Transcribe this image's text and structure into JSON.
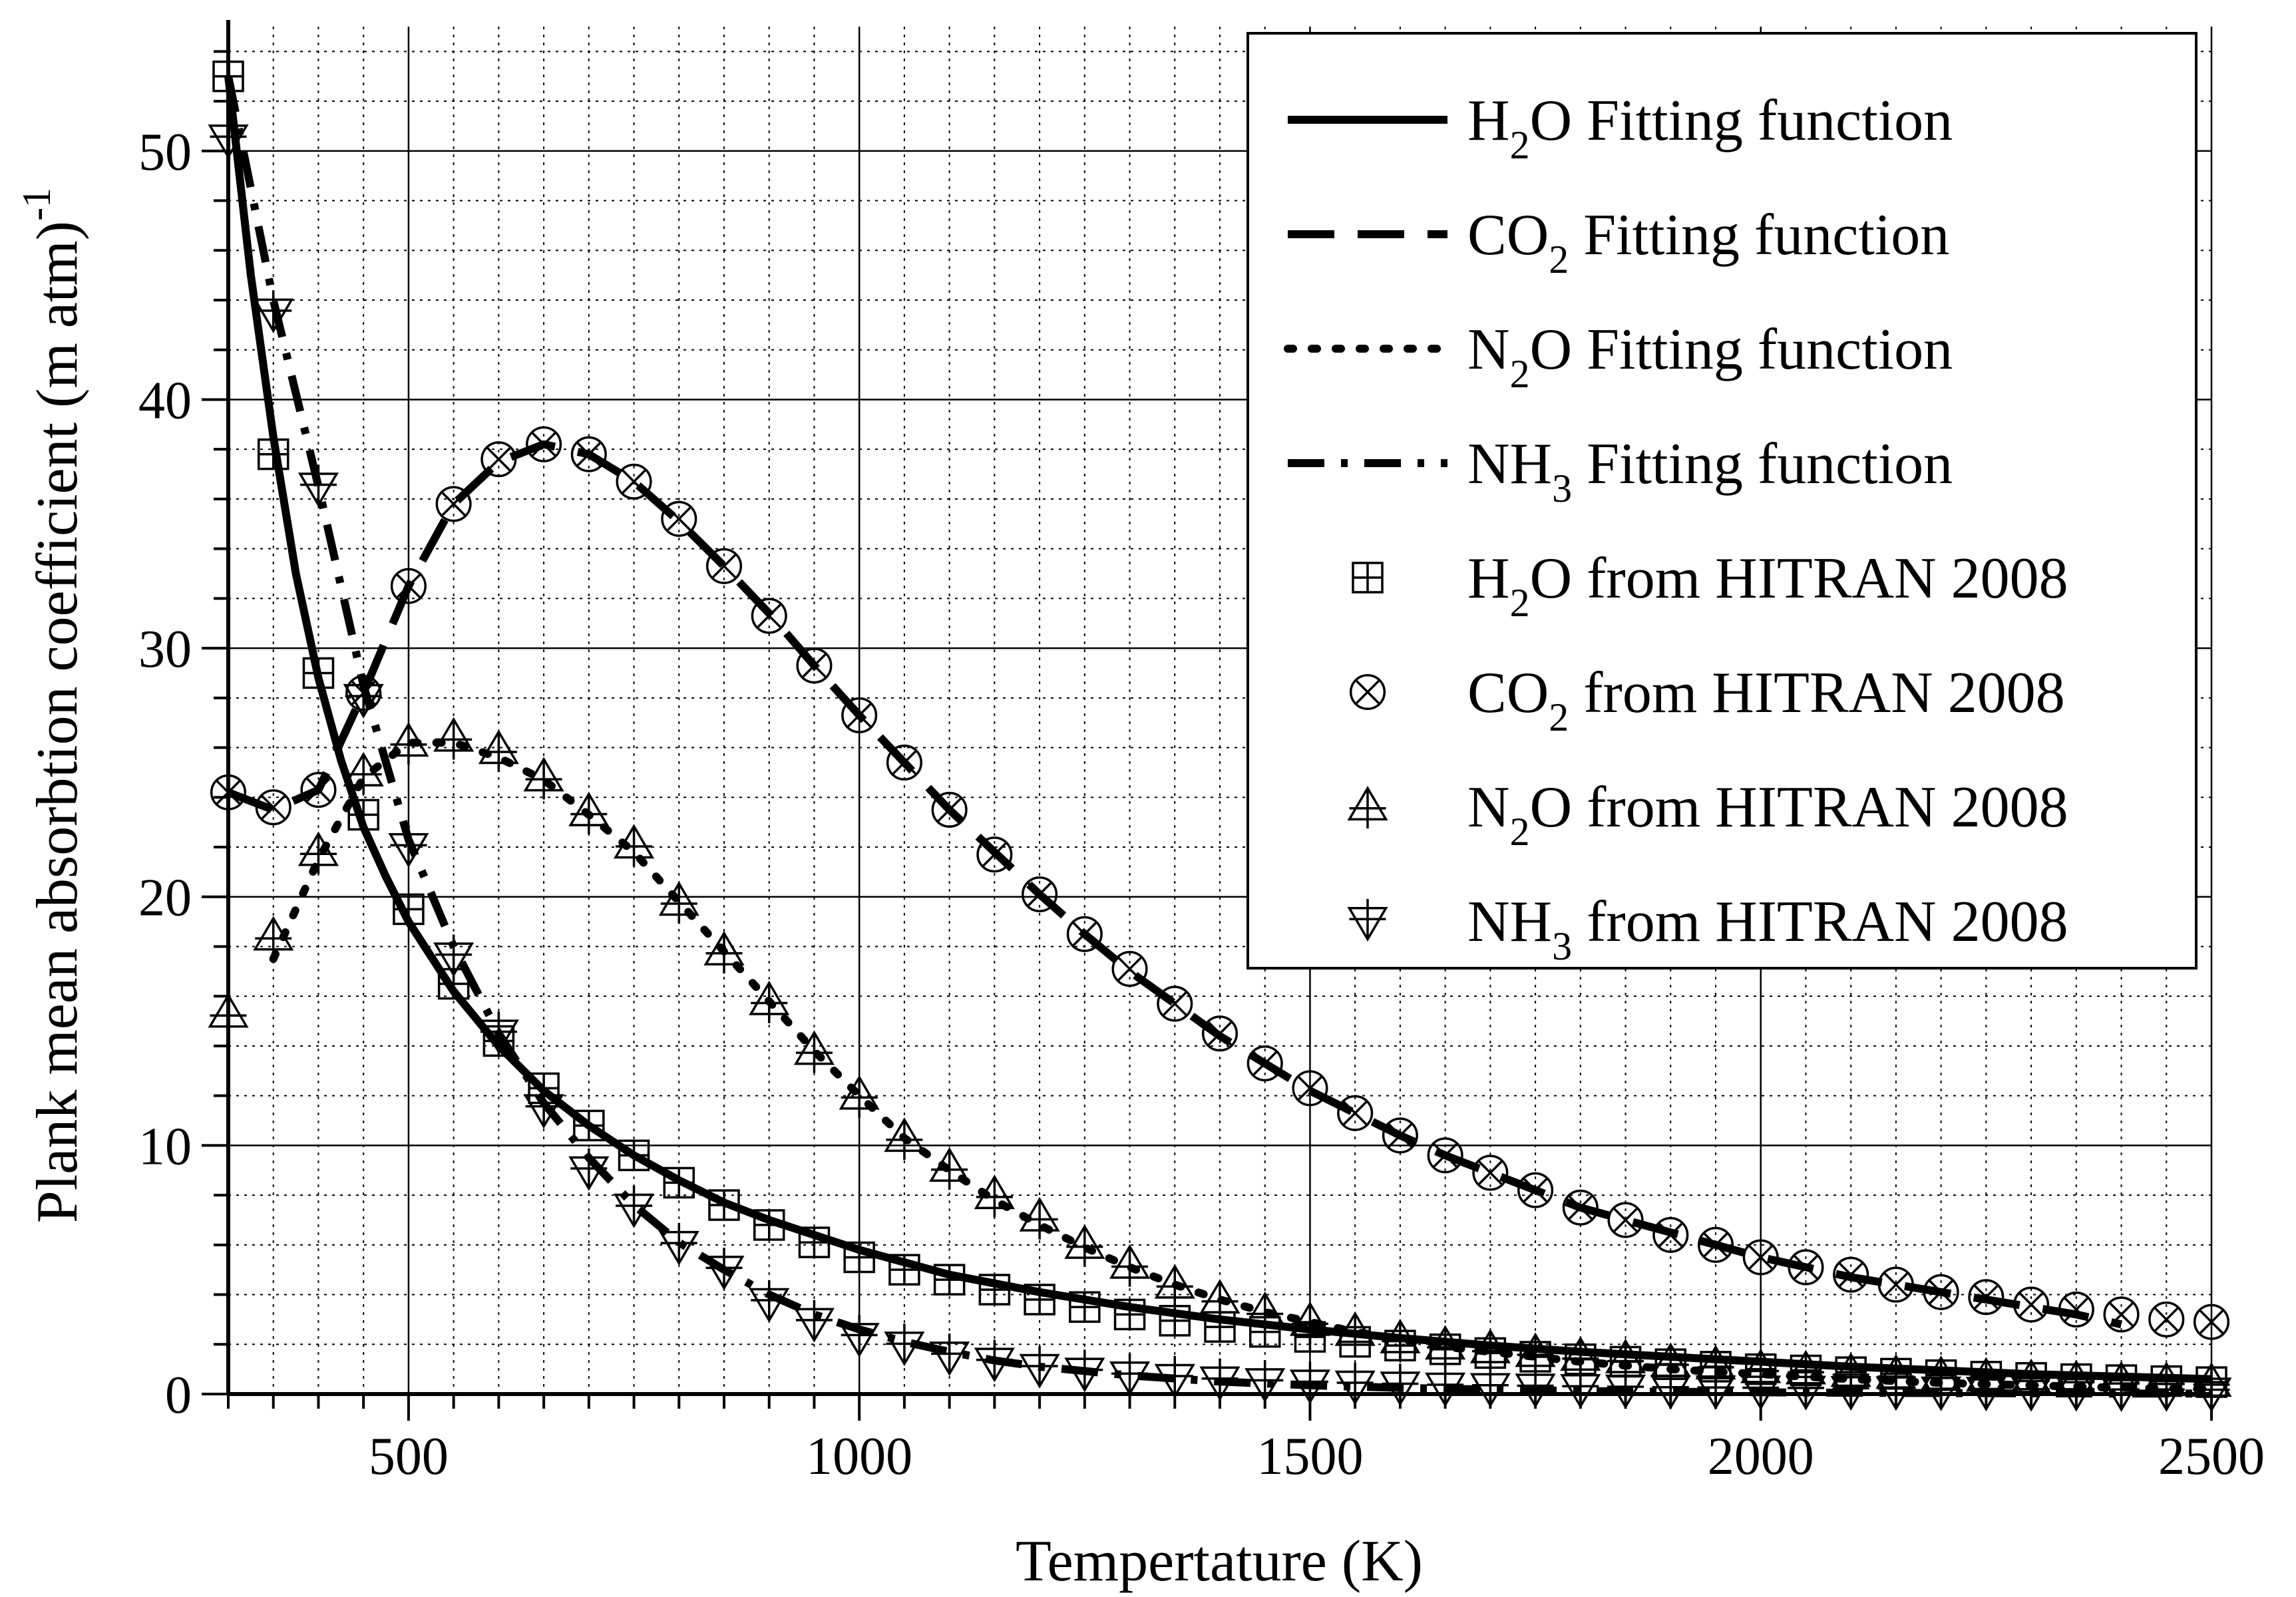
{
  "chart_data": {
    "type": "line",
    "title": "",
    "xlabel": "Tempertature (K)",
    "ylabel": "Plank mean absorbtion coefficient (m atm)",
    "ylabel_superscript": "-1",
    "xlim": [
      300,
      2500
    ],
    "ylim": [
      0,
      55
    ],
    "x_ticks": [
      500,
      1000,
      1500,
      2000,
      2500
    ],
    "y_ticks": [
      0,
      10,
      20,
      30,
      40,
      50
    ],
    "x_tick_labels": [
      "500",
      "1000",
      "1500",
      "2000",
      "2500"
    ],
    "y_tick_labels": [
      "0",
      "10",
      "20",
      "30",
      "40",
      "50"
    ],
    "grid": true,
    "legend_position": "top-right",
    "fitting_series": [
      {
        "name": "H2O Fitting function",
        "legend_main": "H",
        "legend_sub": "2",
        "legend_rest": "O Fitting function",
        "line_style": "solid",
        "x": [
          300,
          325,
          350,
          375,
          400,
          425,
          450,
          475,
          500,
          550,
          600,
          650,
          700,
          750,
          800,
          850,
          900,
          950,
          1000,
          1100,
          1200,
          1300,
          1400,
          1500,
          1600,
          1700,
          1800,
          1900,
          2000,
          2100,
          2200,
          2300,
          2400,
          2500
        ],
        "y": [
          53,
          45,
          38.5,
          33,
          28.8,
          25.5,
          22.8,
          20.8,
          19,
          16.2,
          14,
          12.2,
          10.8,
          9.6,
          8.6,
          7.7,
          7,
          6.4,
          5.8,
          4.8,
          4.1,
          3.5,
          3,
          2.6,
          2.25,
          1.95,
          1.7,
          1.5,
          1.3,
          1.1,
          0.95,
          0.8,
          0.7,
          0.6
        ]
      },
      {
        "name": "CO2 Fitting function",
        "legend_main": "CO",
        "legend_sub": "2",
        "legend_rest": " Fitting function",
        "line_style": "dash",
        "x": [
          300,
          350,
          400,
          450,
          500,
          550,
          600,
          650,
          700,
          750,
          800,
          850,
          900,
          950,
          1000,
          1050,
          1100,
          1150,
          1200,
          1250,
          1300,
          1350,
          1400,
          1450,
          1500,
          1550,
          1600,
          1650,
          1700,
          1750,
          1800,
          1850,
          1900,
          1950,
          2000,
          2050,
          2100,
          2150,
          2200,
          2250,
          2300,
          2350,
          2400
        ],
        "y": [
          24.2,
          23.5,
          24.3,
          28.2,
          32.5,
          35.8,
          37.5,
          38.2,
          37.8,
          36.7,
          35.1,
          33.3,
          31.4,
          29.3,
          27.3,
          25.4,
          23.5,
          21.8,
          20.1,
          18.5,
          17,
          15.7,
          14.4,
          13.3,
          12.2,
          11.3,
          10.4,
          9.6,
          8.9,
          8.2,
          7.5,
          7,
          6.5,
          6,
          5.5,
          5.1,
          4.7,
          4.4,
          4.1,
          3.8,
          3.5,
          3.2,
          2.8
        ]
      },
      {
        "name": "N2O Fitting function",
        "legend_main": "N",
        "legend_sub": "2",
        "legend_rest": "O Fitting function",
        "line_style": "dot",
        "x": [
          350,
          400,
          450,
          500,
          550,
          600,
          650,
          700,
          750,
          800,
          850,
          900,
          950,
          1000,
          1050,
          1100,
          1150,
          1200,
          1250,
          1300,
          1350,
          1400,
          1450,
          1500,
          1550,
          1600,
          1650,
          1700,
          1800,
          1900,
          2000,
          2100,
          2200,
          2300,
          2400,
          2500
        ],
        "y": [
          17.5,
          21.5,
          24.8,
          26.2,
          26.2,
          25.6,
          24.7,
          23.3,
          21.8,
          19.8,
          17.8,
          15.8,
          13.8,
          12,
          10.3,
          9,
          7.8,
          6.8,
          5.9,
          5.1,
          4.4,
          3.8,
          3.3,
          2.9,
          2.5,
          2.2,
          1.9,
          1.7,
          1.3,
          1,
          0.8,
          0.6,
          0.45,
          0.35,
          0.25,
          0.2
        ]
      },
      {
        "name": "NH3 Fitting function",
        "legend_main": "NH",
        "legend_sub": "3",
        "legend_rest": " Fitting function",
        "line_style": "dashdot",
        "x": [
          300,
          350,
          400,
          450,
          500,
          550,
          600,
          650,
          700,
          750,
          800,
          850,
          900,
          950,
          1000,
          1050,
          1100,
          1150,
          1200,
          1300,
          1400,
          1500,
          1600,
          1700,
          1800,
          1900,
          2000,
          2100,
          2200,
          2300,
          2400,
          2500
        ],
        "y": [
          53,
          44,
          36.5,
          28.5,
          22.3,
          18,
          14.5,
          11.7,
          9.5,
          7.6,
          6.1,
          5,
          4,
          3.2,
          2.6,
          2.1,
          1.7,
          1.35,
          1.1,
          0.75,
          0.5,
          0.35,
          0.25,
          0.18,
          0.12,
          0.09,
          0.07,
          0.05,
          0.04,
          0.03,
          0.02,
          0.02
        ]
      }
    ],
    "marker_series": [
      {
        "name": "H2O from HITRAN 2008",
        "legend_main": "H",
        "legend_sub": "2",
        "legend_rest": "O from HITRAN 2008",
        "marker": "square-plus",
        "x": [
          300,
          350,
          400,
          450,
          500,
          550,
          600,
          650,
          700,
          750,
          800,
          850,
          900,
          950,
          1000,
          1050,
          1100,
          1150,
          1200,
          1250,
          1300,
          1350,
          1400,
          1450,
          1500,
          1550,
          1600,
          1650,
          1700,
          1750,
          1800,
          1850,
          1900,
          1950,
          2000,
          2050,
          2100,
          2150,
          2200,
          2250,
          2300,
          2350,
          2400,
          2450,
          2500
        ],
        "y": [
          53,
          37.8,
          29,
          23.3,
          19.5,
          16.5,
          14.2,
          12.3,
          10.8,
          9.6,
          8.5,
          7.6,
          6.8,
          6.1,
          5.5,
          5,
          4.6,
          4.2,
          3.8,
          3.5,
          3.2,
          2.95,
          2.7,
          2.5,
          2.3,
          2.1,
          1.95,
          1.8,
          1.65,
          1.5,
          1.4,
          1.3,
          1.2,
          1.1,
          1,
          0.95,
          0.88,
          0.82,
          0.76,
          0.7,
          0.65,
          0.6,
          0.56,
          0.52,
          0.48
        ]
      },
      {
        "name": "CO2 from HITRAN 2008",
        "legend_main": "CO",
        "legend_sub": "2",
        "legend_rest": " from HITRAN 2008",
        "marker": "circle-x",
        "x": [
          300,
          350,
          400,
          450,
          500,
          550,
          600,
          650,
          700,
          750,
          800,
          850,
          900,
          950,
          1000,
          1050,
          1100,
          1150,
          1200,
          1250,
          1300,
          1350,
          1400,
          1450,
          1500,
          1550,
          1600,
          1650,
          1700,
          1750,
          1800,
          1850,
          1900,
          1950,
          2000,
          2050,
          2100,
          2150,
          2200,
          2250,
          2300,
          2350,
          2400,
          2450,
          2500
        ],
        "y": [
          24.2,
          23.6,
          24.3,
          28.2,
          32.5,
          35.8,
          37.6,
          38.2,
          37.8,
          36.7,
          35.2,
          33.3,
          31.3,
          29.3,
          27.3,
          25.4,
          23.5,
          21.7,
          20.1,
          18.5,
          17.1,
          15.7,
          14.5,
          13.3,
          12.3,
          11.3,
          10.4,
          9.6,
          8.9,
          8.2,
          7.5,
          7,
          6.4,
          6,
          5.5,
          5.1,
          4.8,
          4.4,
          4.1,
          3.9,
          3.6,
          3.4,
          3.2,
          3,
          2.9
        ]
      },
      {
        "name": "N2O from HITRAN 2008",
        "legend_main": "N",
        "legend_sub": "2",
        "legend_rest": "O from HITRAN 2008",
        "marker": "triangle-up-plus",
        "x": [
          300,
          350,
          400,
          450,
          500,
          550,
          600,
          650,
          700,
          750,
          800,
          850,
          900,
          950,
          1000,
          1050,
          1100,
          1150,
          1200,
          1250,
          1300,
          1350,
          1400,
          1450,
          1500,
          1550,
          1600,
          1650,
          1700,
          1750,
          1800,
          1850,
          1900,
          1950,
          2000,
          2050,
          2100,
          2150,
          2200,
          2250,
          2300,
          2350,
          2400,
          2450,
          2500
        ],
        "y": [
          15.3,
          18.4,
          21.8,
          25,
          26.2,
          26.4,
          25.9,
          24.8,
          23.4,
          22.1,
          19.8,
          17.8,
          15.8,
          13.8,
          12,
          10.3,
          9.1,
          8,
          7.1,
          6,
          5.2,
          4.4,
          3.8,
          3.3,
          2.9,
          2.5,
          2.2,
          1.95,
          1.8,
          1.65,
          1.5,
          1.4,
          1.25,
          1.15,
          1,
          0.95,
          0.85,
          0.78,
          0.72,
          0.66,
          0.6,
          0.55,
          0.5,
          0.48,
          0.45
        ]
      },
      {
        "name": "NH3 from HITRAN 2008",
        "legend_main": "NH",
        "legend_sub": "3",
        "legend_rest": " from HITRAN 2008",
        "marker": "triangle-down-plus",
        "x": [
          300,
          350,
          400,
          450,
          500,
          550,
          600,
          650,
          700,
          750,
          800,
          850,
          900,
          950,
          1000,
          1050,
          1100,
          1150,
          1200,
          1250,
          1300,
          1350,
          1400,
          1450,
          1500,
          1550,
          1600,
          1650,
          1700,
          1750,
          1800,
          1850,
          1900,
          1950,
          2000,
          2050,
          2100,
          2150,
          2200,
          2250,
          2300,
          2350,
          2400,
          2450,
          2500
        ],
        "y": [
          50.5,
          43.5,
          36.5,
          28,
          22,
          17.6,
          14.5,
          11.5,
          9,
          7.5,
          6,
          5,
          3.7,
          2.9,
          2.3,
          1.95,
          1.55,
          1.3,
          1.05,
          0.9,
          0.75,
          0.65,
          0.55,
          0.48,
          0.42,
          0.38,
          0.34,
          0.3,
          0.28,
          0.26,
          0.24,
          0.22,
          0.2,
          0.19,
          0.18,
          0.17,
          0.16,
          0.15,
          0.14,
          0.13,
          0.12,
          0.12,
          0.11,
          0.11,
          0.1
        ]
      }
    ]
  }
}
